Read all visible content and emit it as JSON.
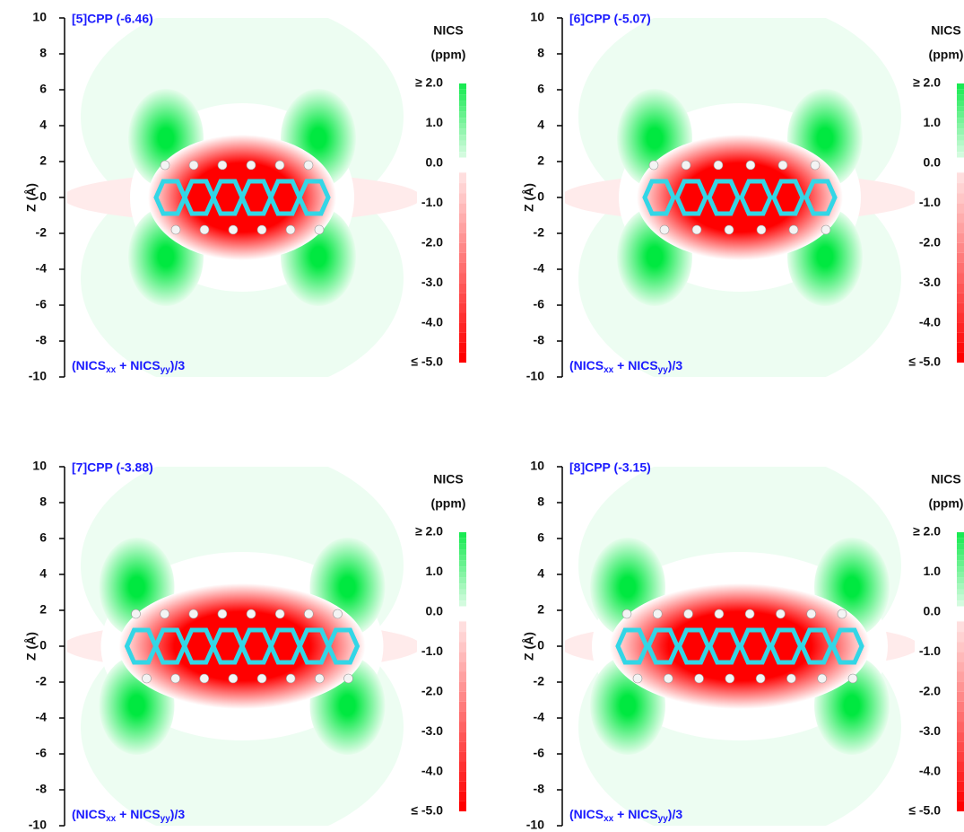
{
  "chart_data": [
    {
      "type": "contour",
      "title": "[5]CPP (-6.46)",
      "ylabel": "Z (Å)",
      "ylim": [
        -10,
        10
      ],
      "yticks": [
        10,
        8,
        6,
        4,
        2,
        0,
        -2,
        -4,
        -6,
        -8,
        -10
      ],
      "annotation": [
        "(NICS",
        "xx",
        " + NICS",
        "yy",
        ")/3"
      ],
      "colorbar_title": [
        "NICS",
        "(ppm)"
      ],
      "clim": [
        -5,
        2
      ],
      "colorbar_ticks": [
        {
          "value": 2,
          "label": "≥ 2.0"
        },
        {
          "value": 1,
          "label": "1.0"
        },
        {
          "value": 0,
          "label": "0.0"
        },
        {
          "value": -1,
          "label": "-1.0"
        },
        {
          "value": -2,
          "label": "-2.0"
        },
        {
          "value": -3,
          "label": "-3.0"
        },
        {
          "value": -4,
          "label": "-4.0"
        },
        {
          "value": -5,
          "label": "≤ -5.0"
        }
      ],
      "colors": {
        "positive": "#00e840",
        "negative": "#ff0000"
      }
    },
    {
      "type": "contour",
      "title": "[6]CPP (-5.07)",
      "ylabel": "Z (Å)",
      "ylim": [
        -10,
        10
      ],
      "yticks": [
        10,
        8,
        6,
        4,
        2,
        0,
        -2,
        -4,
        -6,
        -8,
        -10
      ],
      "annotation": [
        "(NICS",
        "xx",
        " + NICS",
        "yy",
        ")/3"
      ],
      "colorbar_title": [
        "NICS",
        "(ppm)"
      ],
      "clim": [
        -5,
        2
      ],
      "colorbar_ticks": [
        {
          "value": 2,
          "label": "≥ 2.0"
        },
        {
          "value": 1,
          "label": "1.0"
        },
        {
          "value": 0,
          "label": "0.0"
        },
        {
          "value": -1,
          "label": "-1.0"
        },
        {
          "value": -2,
          "label": "-2.0"
        },
        {
          "value": -3,
          "label": "-3.0"
        },
        {
          "value": -4,
          "label": "-4.0"
        },
        {
          "value": -5,
          "label": "≤ -5.0"
        }
      ],
      "colors": {
        "positive": "#00e840",
        "negative": "#ff0000"
      }
    },
    {
      "type": "contour",
      "title": "[7]CPP (-3.88)",
      "ylabel": "Z (Å)",
      "ylim": [
        -10,
        10
      ],
      "yticks": [
        10,
        8,
        6,
        4,
        2,
        0,
        -2,
        -4,
        -6,
        -8,
        -10
      ],
      "annotation": [
        "(NICS",
        "xx",
        " + NICS",
        "yy",
        ")/3"
      ],
      "colorbar_title": [
        "NICS",
        "(ppm)"
      ],
      "clim": [
        -5,
        2
      ],
      "colorbar_ticks": [
        {
          "value": 2,
          "label": "≥ 2.0"
        },
        {
          "value": 1,
          "label": "1.0"
        },
        {
          "value": 0,
          "label": "0.0"
        },
        {
          "value": -1,
          "label": "-1.0"
        },
        {
          "value": -2,
          "label": "-2.0"
        },
        {
          "value": -3,
          "label": "-3.0"
        },
        {
          "value": -4,
          "label": "-4.0"
        },
        {
          "value": -5,
          "label": "≤ -5.0"
        }
      ],
      "colors": {
        "positive": "#00e840",
        "negative": "#ff0000"
      }
    },
    {
      "type": "contour",
      "title": "[8]CPP (-3.15)",
      "ylabel": "Z (Å)",
      "ylim": [
        -10,
        10
      ],
      "yticks": [
        10,
        8,
        6,
        4,
        2,
        0,
        -2,
        -4,
        -6,
        -8,
        -10
      ],
      "annotation": [
        "(NICS",
        "xx",
        " + NICS",
        "yy",
        ")/3"
      ],
      "colorbar_title": [
        "NICS",
        "(ppm)"
      ],
      "clim": [
        -5,
        2
      ],
      "colorbar_ticks": [
        {
          "value": 2,
          "label": "≥ 2.0"
        },
        {
          "value": 1,
          "label": "1.0"
        },
        {
          "value": 0,
          "label": "0.0"
        },
        {
          "value": -1,
          "label": "-1.0"
        },
        {
          "value": -2,
          "label": "-2.0"
        },
        {
          "value": -3,
          "label": "-3.0"
        },
        {
          "value": -4,
          "label": "-4.0"
        },
        {
          "value": -5,
          "label": "≤ -5.0"
        }
      ],
      "colors": {
        "positive": "#00e840",
        "negative": "#ff0000"
      }
    }
  ]
}
